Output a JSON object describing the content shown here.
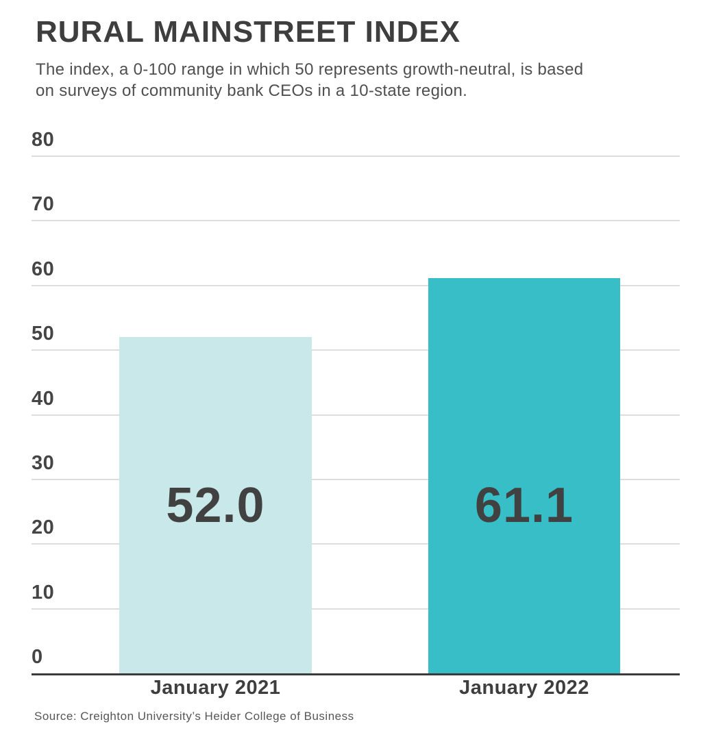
{
  "page": {
    "title": "RURAL MAINSTREET INDEX",
    "subtitle": "The index, a 0-100 range in which 50 represents growth-neutral, is based on surveys of community bank CEOs in a 10-state region.",
    "source": "Source: Creighton University’s Heider College of Business"
  },
  "chart_data": {
    "type": "bar",
    "categories": [
      "January 2021",
      "January 2022"
    ],
    "values": [
      52.0,
      61.1
    ],
    "value_labels": [
      "52.0",
      "61.1"
    ],
    "title": "RURAL MAINSTREET INDEX",
    "xlabel": "",
    "ylabel": "",
    "ylim": [
      0,
      80
    ],
    "yticks": [
      0,
      10,
      20,
      30,
      40,
      50,
      60,
      70,
      80
    ],
    "grid": true,
    "legend_position": "none",
    "bar_colors": [
      "#c9e8ea",
      "#38bec6"
    ],
    "value_label_color": "#414141"
  },
  "colors": {
    "accent_teal": "#38bec6",
    "accent_teal_light": "#c9e8ea",
    "text_dark": "#3e3e3e",
    "gridline": "#dddddd",
    "axis": "#3a3a3a"
  }
}
